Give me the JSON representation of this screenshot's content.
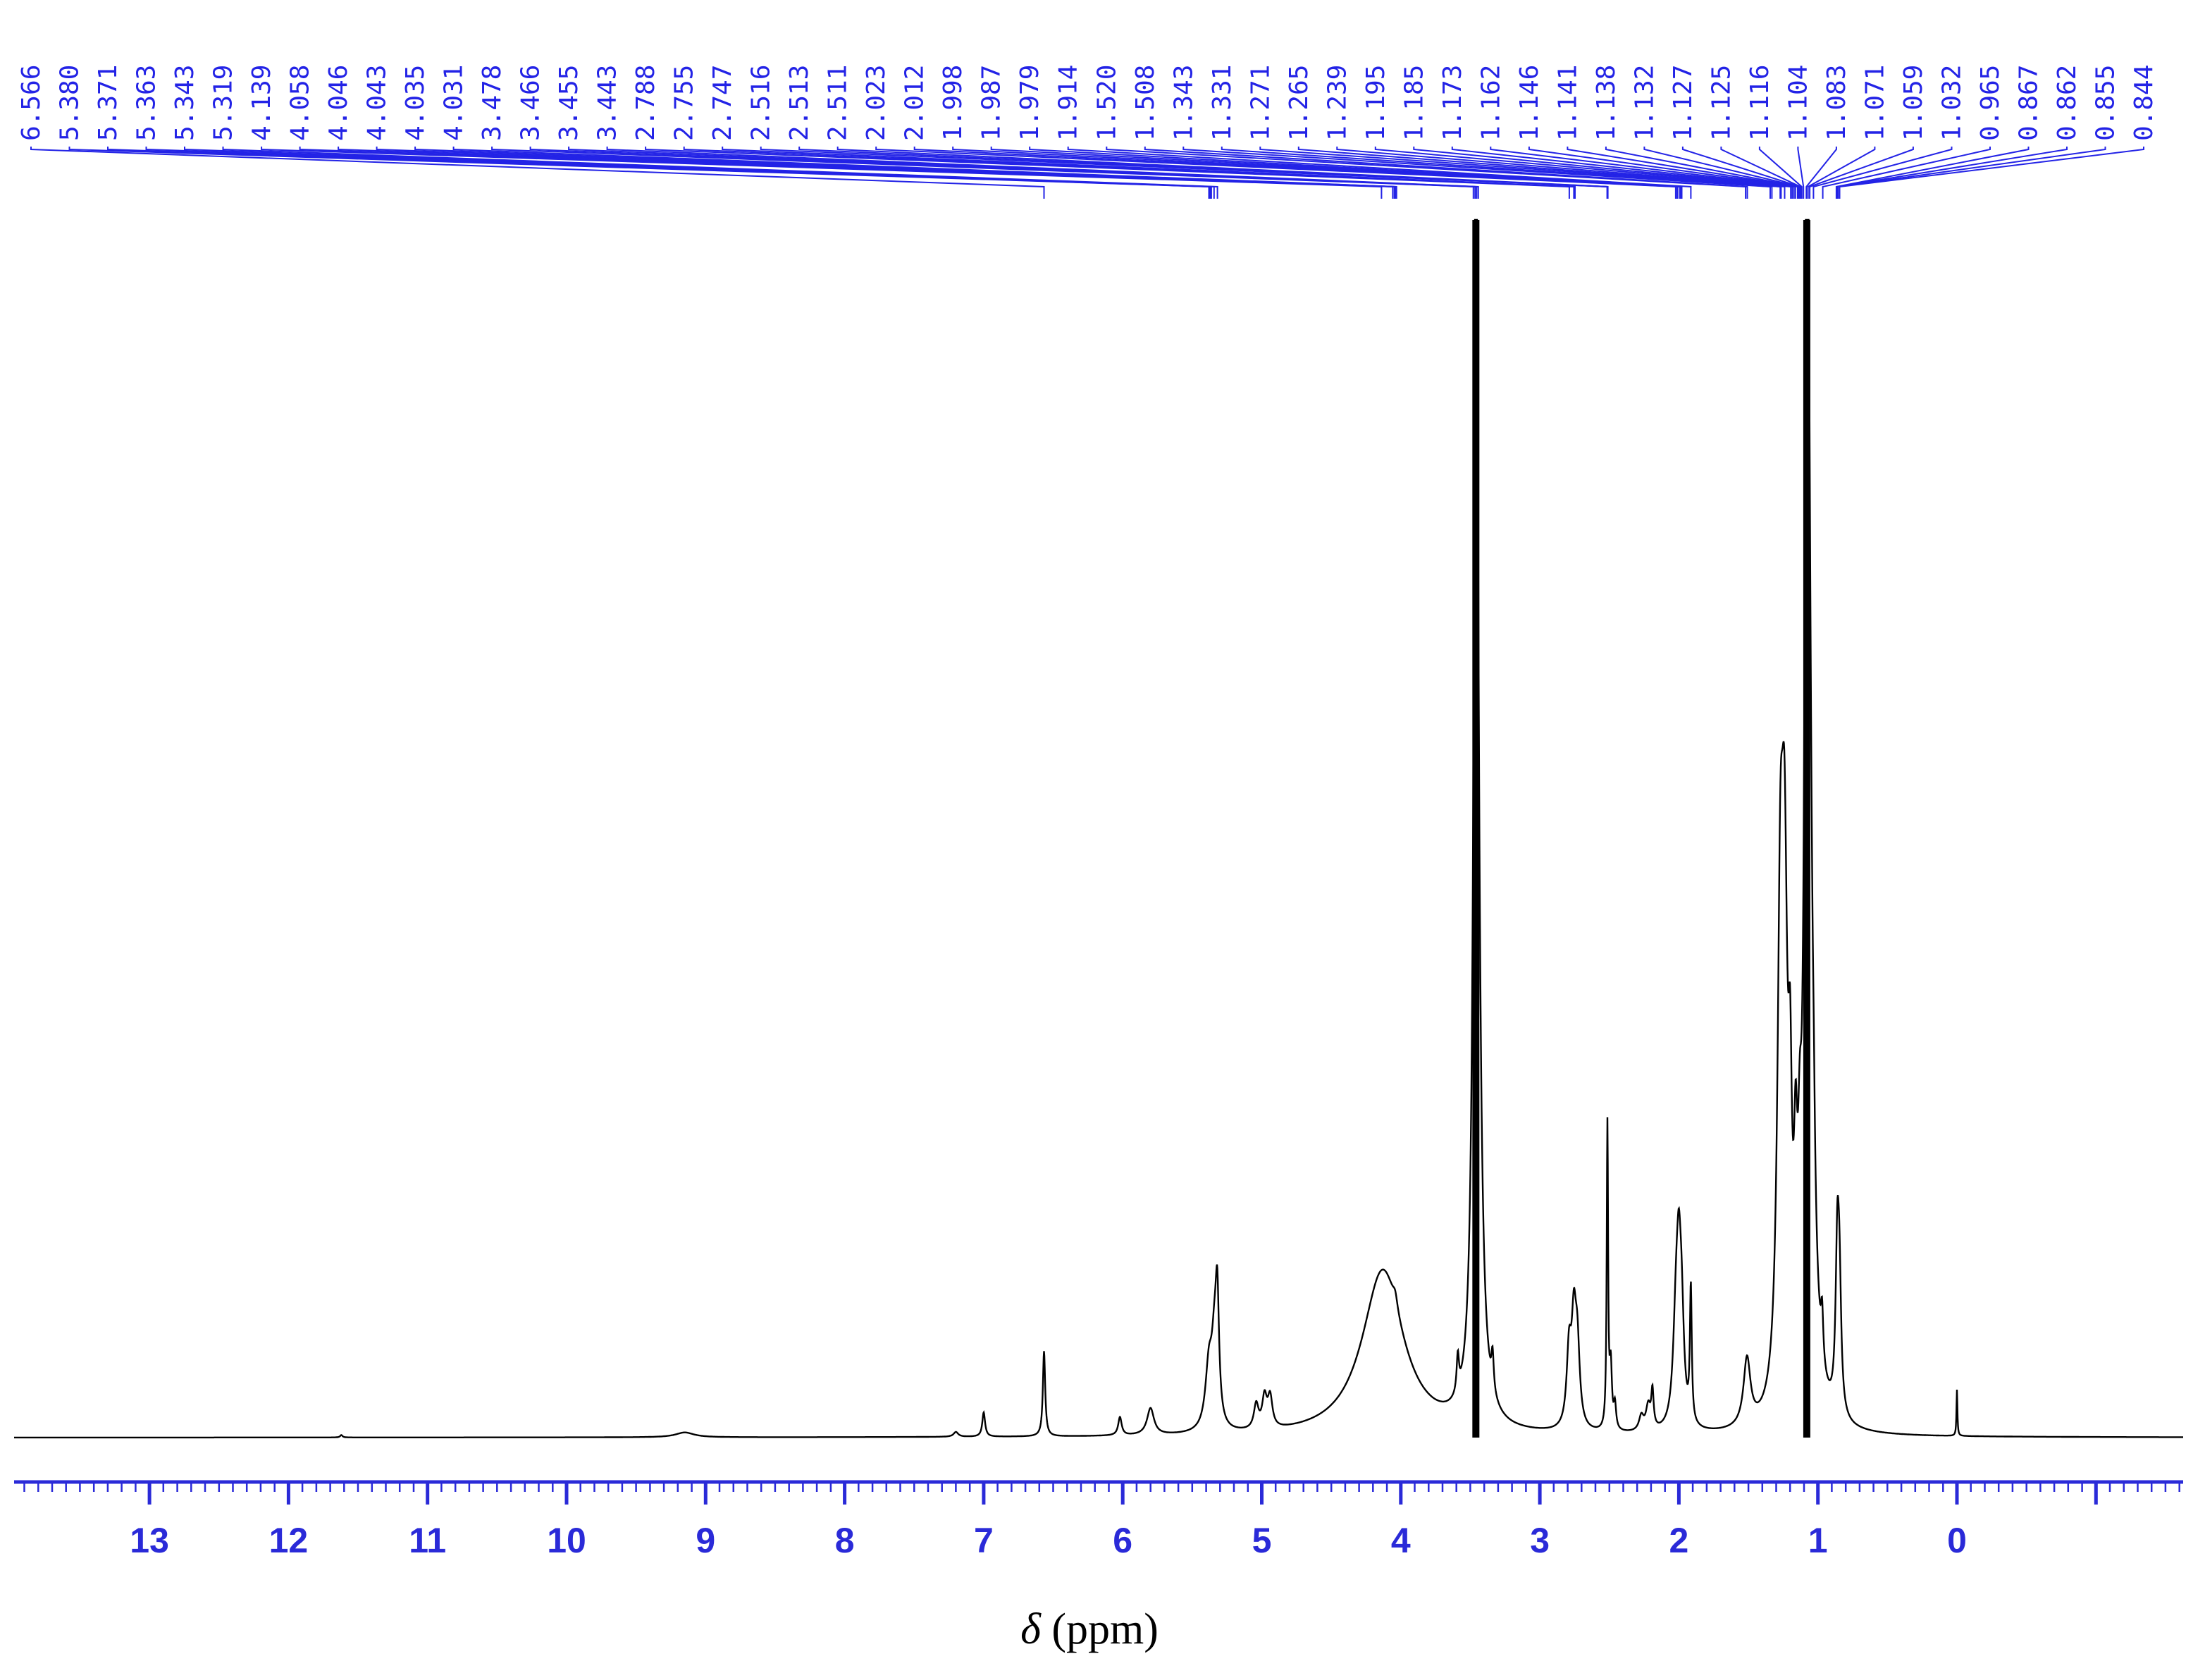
{
  "chart_data": {
    "type": "line",
    "title": "",
    "xlabel": "δ (ppm)",
    "xlabel_symbol": "δ",
    "xlabel_unit": "(ppm)",
    "ylabel": "",
    "x_reversed": true,
    "xlim": [
      -1.6,
      14.0
    ],
    "ylim": [
      0,
      1
    ],
    "x_ticks": [
      13,
      12,
      11,
      10,
      9,
      8,
      7,
      6,
      5,
      4,
      3,
      2,
      1,
      0
    ],
    "x_tick_labels": [
      "13",
      "12",
      "11",
      "10",
      "9",
      "8",
      "7",
      "6",
      "5",
      "4",
      "3",
      "2",
      "1",
      "0"
    ],
    "grid": false,
    "legend": "none",
    "colors": {
      "trace": "#000000",
      "axis": "#2a2ad8",
      "peak_labels": "#2323e6"
    },
    "peak_labels": [
      "6.566",
      "5.380",
      "5.371",
      "5.363",
      "5.343",
      "5.319",
      "4.139",
      "4.058",
      "4.046",
      "4.043",
      "4.035",
      "4.031",
      "3.478",
      "3.466",
      "3.455",
      "3.443",
      "2.788",
      "2.755",
      "2.747",
      "2.516",
      "2.513",
      "2.511",
      "2.023",
      "2.012",
      "1.998",
      "1.987",
      "1.979",
      "1.914",
      "1.520",
      "1.508",
      "1.343",
      "1.331",
      "1.271",
      "1.265",
      "1.239",
      "1.195",
      "1.185",
      "1.173",
      "1.162",
      "1.146",
      "1.141",
      "1.138",
      "1.132",
      "1.127",
      "1.125",
      "1.116",
      "1.104",
      "1.083",
      "1.071",
      "1.059",
      "1.032",
      "0.965",
      "0.867",
      "0.862",
      "0.855",
      "0.844"
    ],
    "peaks": [
      {
        "x": 3.46,
        "y": 1.0,
        "w": 0.012
      },
      {
        "x": 3.453,
        "y": 0.42,
        "w": 0.03
      },
      {
        "x": 1.08,
        "y": 1.0,
        "w": 0.012
      },
      {
        "x": 1.065,
        "y": 0.55,
        "w": 0.03
      },
      {
        "x": 1.27,
        "y": 0.36,
        "w": 0.025
      },
      {
        "x": 1.24,
        "y": 0.36,
        "w": 0.025
      },
      {
        "x": 1.2,
        "y": 0.17,
        "w": 0.015
      },
      {
        "x": 1.16,
        "y": 0.13,
        "w": 0.015
      },
      {
        "x": 1.13,
        "y": 0.1,
        "w": 0.015
      },
      {
        "x": 1.03,
        "y": 0.04,
        "w": 0.01
      },
      {
        "x": 0.97,
        "y": 0.04,
        "w": 0.01
      },
      {
        "x": 0.86,
        "y": 0.13,
        "w": 0.015
      },
      {
        "x": 0.845,
        "y": 0.09,
        "w": 0.015
      },
      {
        "x": 2.514,
        "y": 0.25,
        "w": 0.006
      },
      {
        "x": 2.49,
        "y": 0.05,
        "w": 0.01
      },
      {
        "x": 2.46,
        "y": 0.02,
        "w": 0.01
      },
      {
        "x": 2.79,
        "y": 0.06,
        "w": 0.02
      },
      {
        "x": 2.755,
        "y": 0.08,
        "w": 0.02
      },
      {
        "x": 2.73,
        "y": 0.06,
        "w": 0.02
      },
      {
        "x": 2.27,
        "y": 0.012,
        "w": 0.02
      },
      {
        "x": 2.22,
        "y": 0.02,
        "w": 0.02
      },
      {
        "x": 2.19,
        "y": 0.03,
        "w": 0.01
      },
      {
        "x": 2.02,
        "y": 0.08,
        "w": 0.025
      },
      {
        "x": 2.0,
        "y": 0.1,
        "w": 0.02
      },
      {
        "x": 1.98,
        "y": 0.07,
        "w": 0.02
      },
      {
        "x": 1.914,
        "y": 0.11,
        "w": 0.008
      },
      {
        "x": 1.51,
        "y": 0.055,
        "w": 0.03
      },
      {
        "x": 4.13,
        "y": 0.136,
        "w": 0.18
      },
      {
        "x": 4.04,
        "y": 0.01,
        "w": 0.02
      },
      {
        "x": 5.38,
        "y": 0.05,
        "w": 0.03
      },
      {
        "x": 5.34,
        "y": 0.06,
        "w": 0.025
      },
      {
        "x": 5.32,
        "y": 0.09,
        "w": 0.015
      },
      {
        "x": 5.04,
        "y": 0.02,
        "w": 0.02
      },
      {
        "x": 4.98,
        "y": 0.025,
        "w": 0.02
      },
      {
        "x": 4.94,
        "y": 0.025,
        "w": 0.02
      },
      {
        "x": 3.59,
        "y": 0.03,
        "w": 0.01
      },
      {
        "x": 3.34,
        "y": 0.03,
        "w": 0.01
      },
      {
        "x": 6.566,
        "y": 0.07,
        "w": 0.01
      },
      {
        "x": 7.0,
        "y": 0.02,
        "w": 0.012
      },
      {
        "x": 6.02,
        "y": 0.015,
        "w": 0.015
      },
      {
        "x": 5.8,
        "y": 0.022,
        "w": 0.03
      },
      {
        "x": 7.2,
        "y": 0.004,
        "w": 0.02
      },
      {
        "x": 9.15,
        "y": 0.004,
        "w": 0.08
      },
      {
        "x": 11.62,
        "y": 0.002,
        "w": 0.01
      },
      {
        "x": 0.0,
        "y": 0.038,
        "w": 0.004
      }
    ]
  }
}
